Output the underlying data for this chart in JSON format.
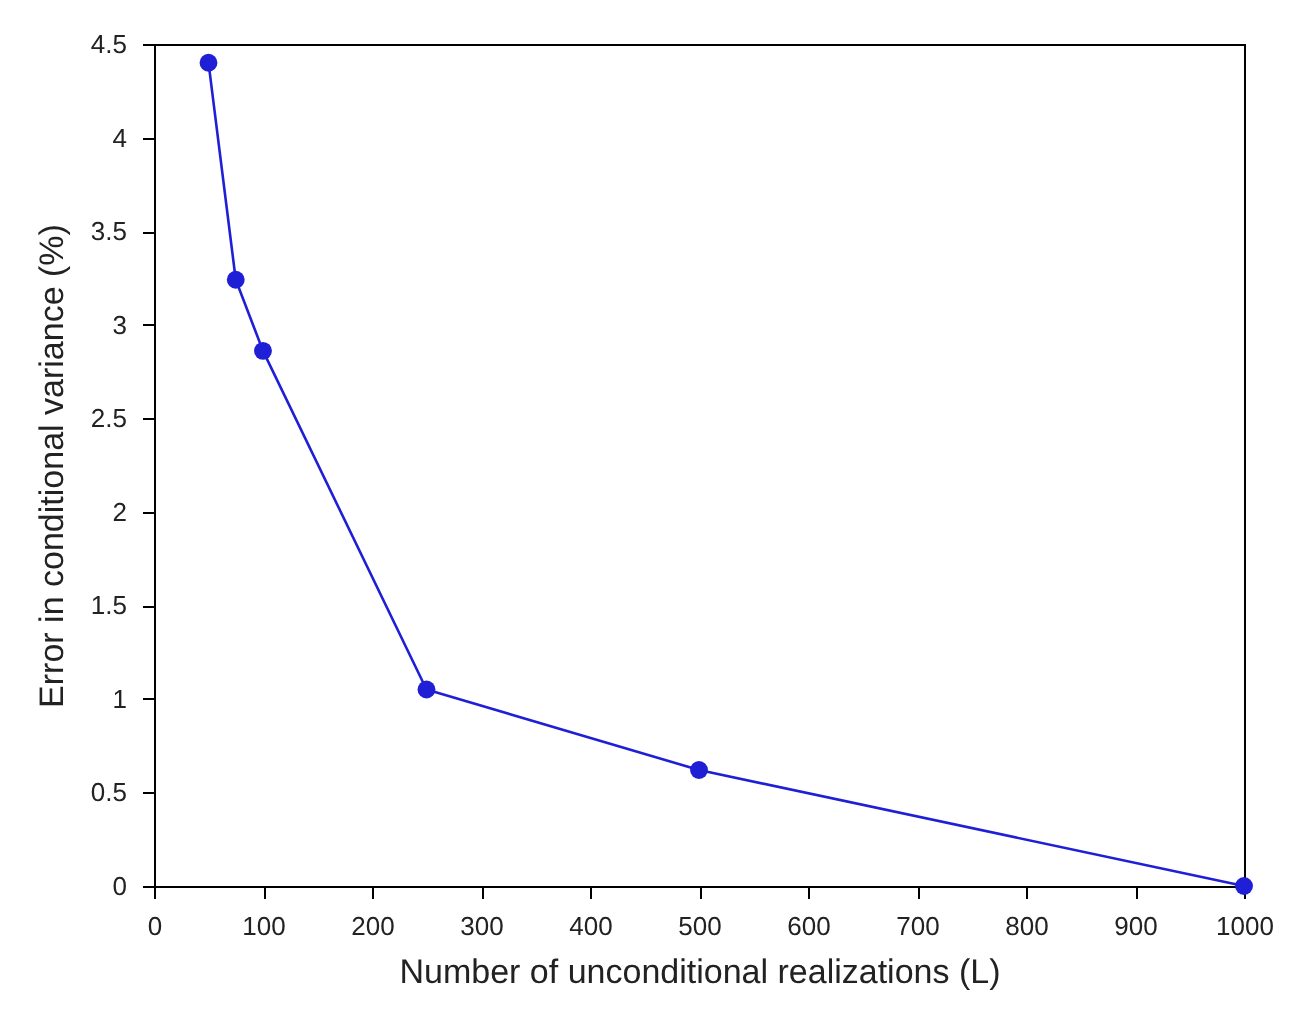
{
  "chart_data": {
    "type": "line",
    "xlabel": "Number of unconditional realizations (L)",
    "ylabel": "Error in conditional variance (%)",
    "x": [
      50,
      75,
      100,
      250,
      500,
      1000
    ],
    "series": [
      {
        "color": "#1f1fd6",
        "values": [
          4.4,
          3.24,
          2.86,
          1.05,
          0.62,
          0
        ]
      }
    ],
    "xlim": [
      0,
      1000
    ],
    "xticks": [
      0,
      100,
      200,
      300,
      400,
      500,
      600,
      700,
      800,
      900,
      1000
    ],
    "ylim": [
      0,
      4.5
    ],
    "yticks": [
      0,
      0.5,
      1,
      1.5,
      2,
      2.5,
      3,
      3.5,
      4,
      4.5
    ],
    "grid": false,
    "marker": "circle",
    "line_style": "solid"
  }
}
